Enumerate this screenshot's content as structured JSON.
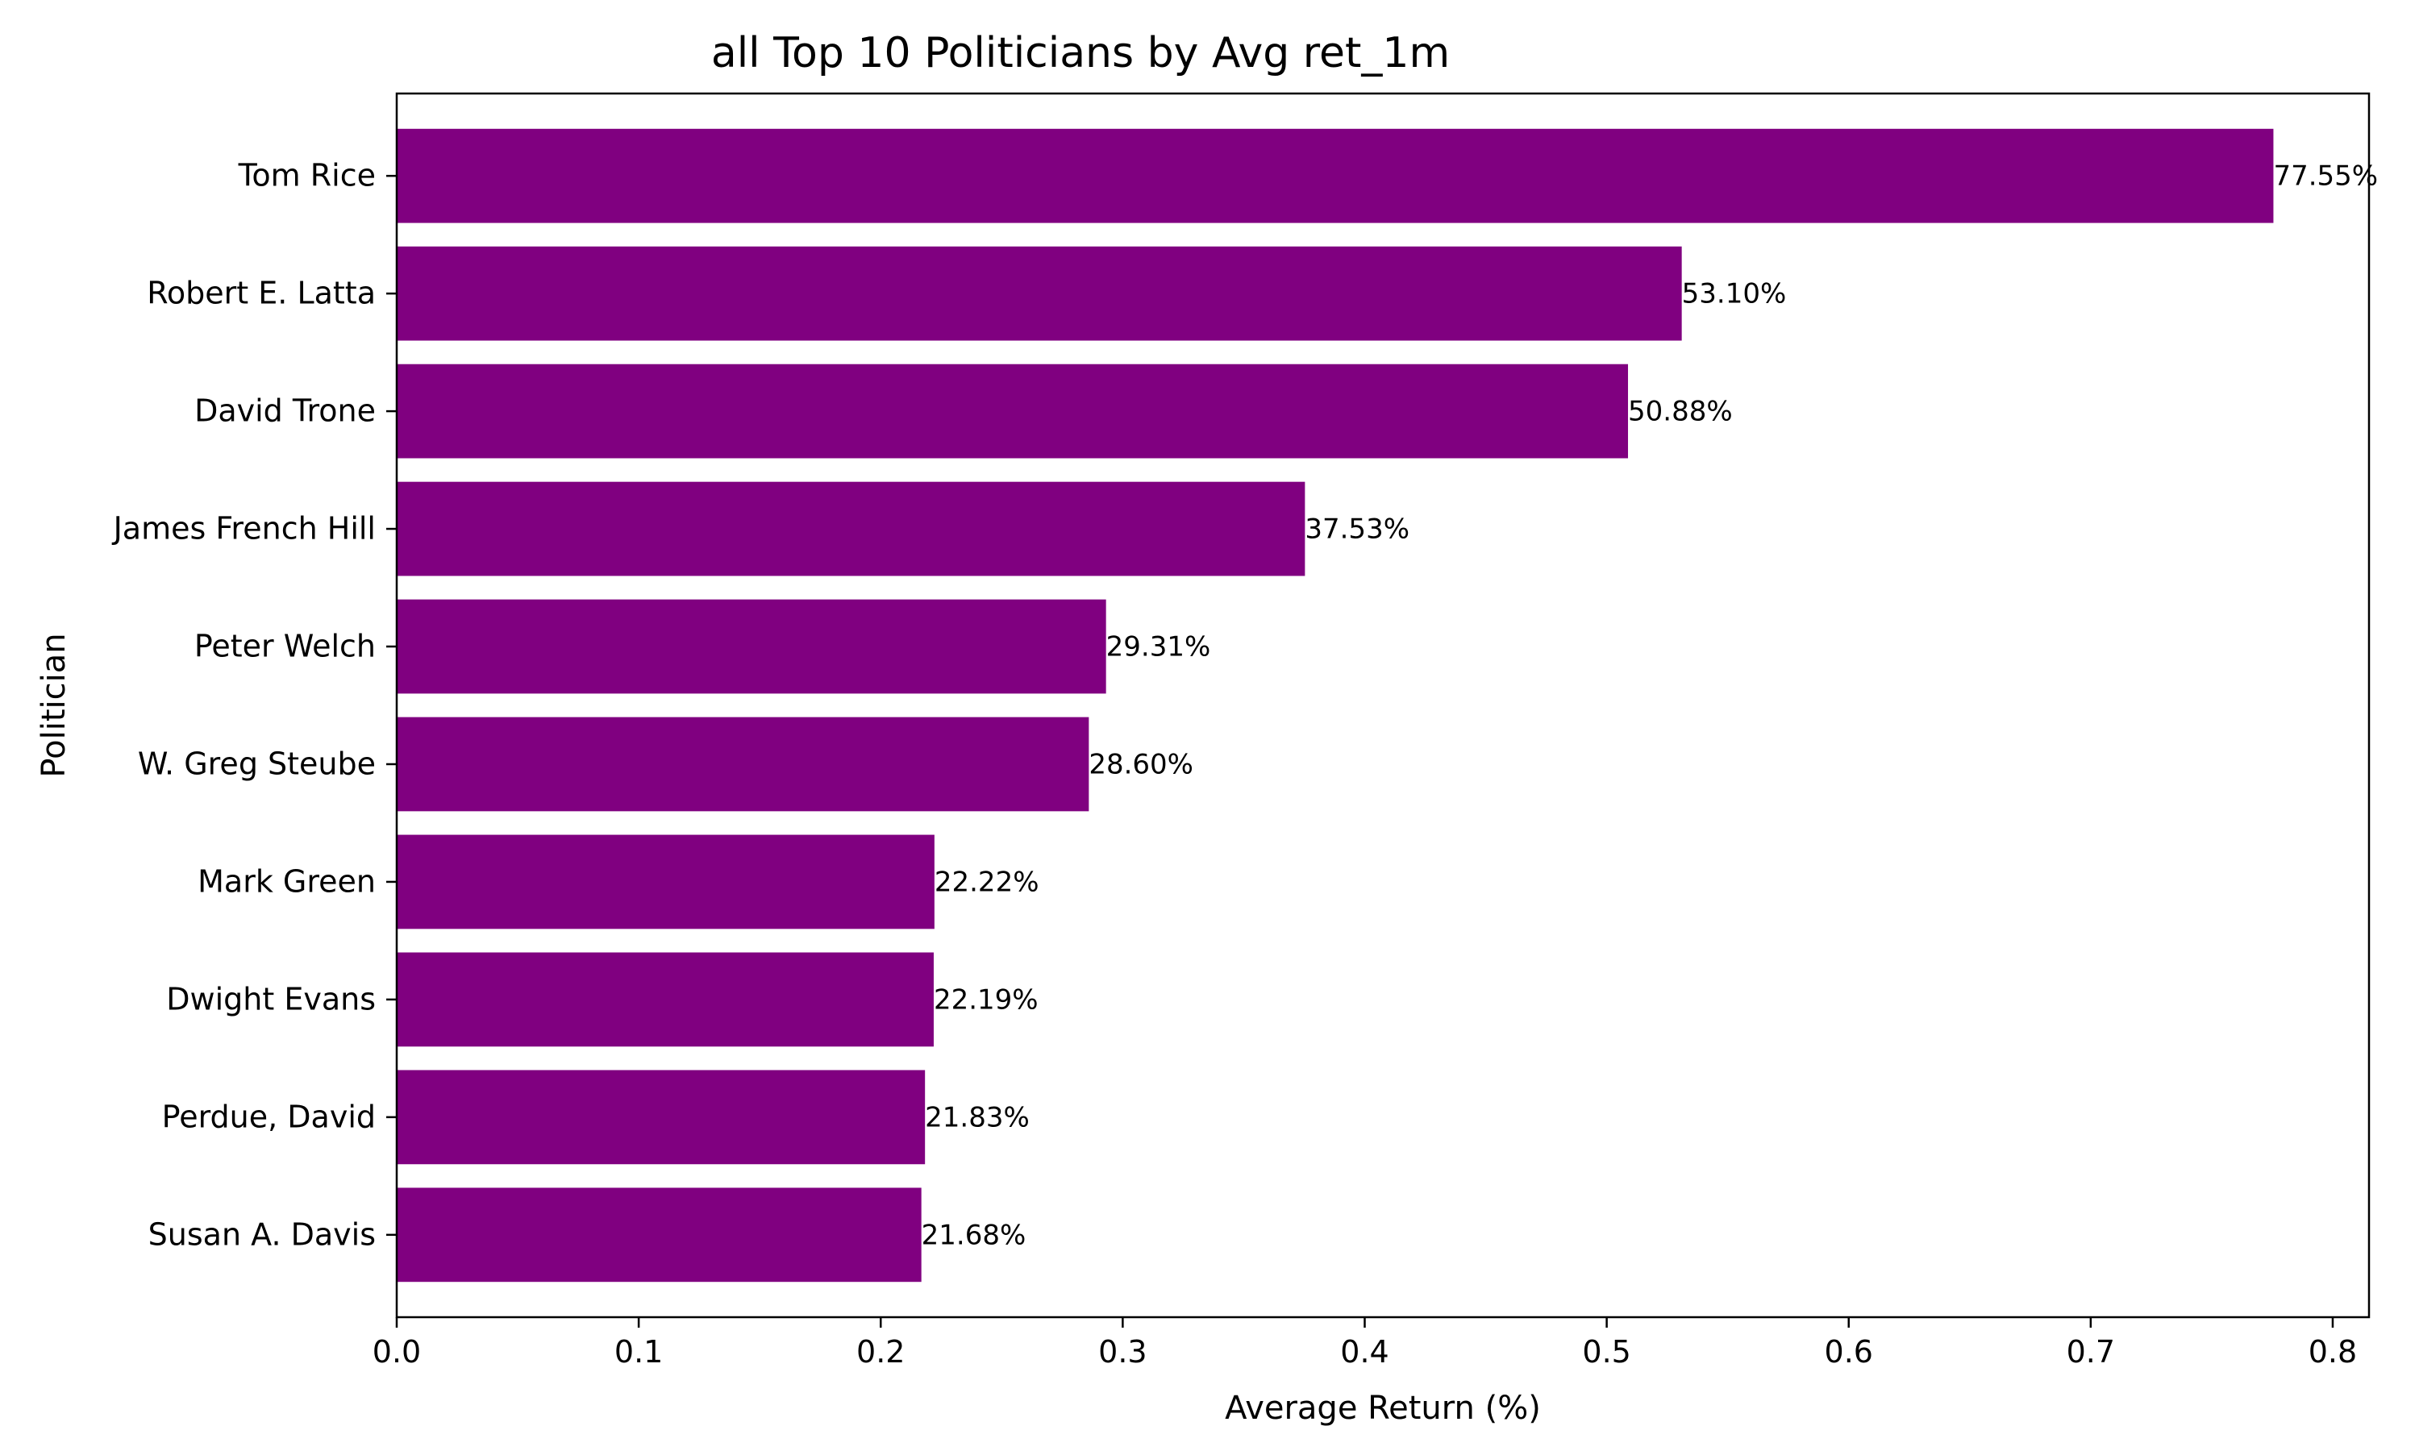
{
  "chart_data": {
    "type": "bar",
    "orientation": "horizontal",
    "title": "all Top 10 Politicians by Avg ret_1m",
    "xlabel": "Average Return (%)",
    "ylabel": "Politician",
    "categories": [
      "Tom Rice",
      "Robert E. Latta",
      "David Trone",
      "James French Hill",
      "Peter Welch",
      "W. Greg Steube",
      "Mark Green",
      "Dwight Evans",
      "Perdue, David",
      "Susan A. Davis"
    ],
    "values": [
      0.7755,
      0.531,
      0.5088,
      0.3753,
      0.2931,
      0.286,
      0.2222,
      0.2219,
      0.2183,
      0.2168
    ],
    "data_labels": [
      "77.55%",
      "53.10%",
      "50.88%",
      "37.53%",
      "29.31%",
      "28.60%",
      "22.22%",
      "22.19%",
      "21.83%",
      "21.68%"
    ],
    "xlim": [
      0.0,
      0.815
    ],
    "xticks": [
      0.0,
      0.1,
      0.2,
      0.3,
      0.4,
      0.5,
      0.6,
      0.7,
      0.8
    ],
    "xtick_labels": [
      "0.0",
      "0.1",
      "0.2",
      "0.3",
      "0.4",
      "0.5",
      "0.6",
      "0.7",
      "0.8"
    ],
    "grid": false,
    "legend": "none",
    "bar_color": "#800080"
  }
}
